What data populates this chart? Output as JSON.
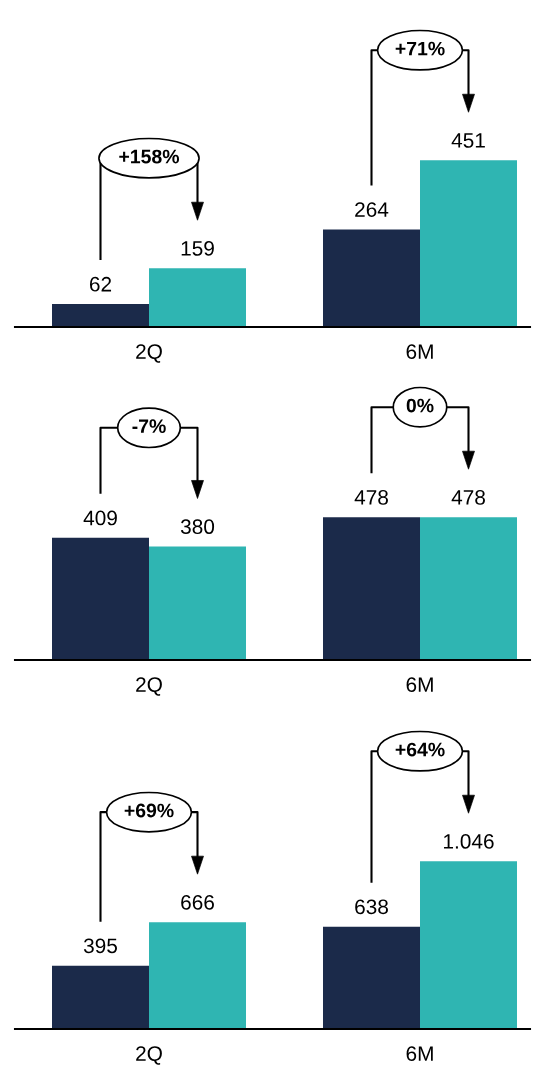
{
  "chart_data": [
    {
      "type": "bar",
      "categories": [
        "2Q",
        "6M"
      ],
      "data_labels": true,
      "legend": false,
      "grid": false,
      "series": [
        {
          "color": "#1b2a4a",
          "values": [
            62,
            264
          ]
        },
        {
          "color": "#2fb5b2",
          "values": [
            159,
            451
          ]
        }
      ],
      "annotations": [
        "+158%",
        "+71%"
      ]
    },
    {
      "type": "bar",
      "categories": [
        "2Q",
        "6M"
      ],
      "data_labels": true,
      "legend": false,
      "grid": false,
      "series": [
        {
          "color": "#1b2a4a",
          "values": [
            409,
            478
          ]
        },
        {
          "color": "#2fb5b2",
          "values": [
            380,
            478
          ]
        }
      ],
      "annotations": [
        "-7%",
        "0%"
      ]
    },
    {
      "type": "bar",
      "categories": [
        "2Q",
        "6M"
      ],
      "legend": false,
      "grid": false,
      "series": [
        {
          "color": "#1b2a4a",
          "values": [
            395,
            638
          ],
          "value_labels": [
            "395",
            "638"
          ]
        },
        {
          "color": "#2fb5b2",
          "values": [
            666,
            1046
          ],
          "value_labels": [
            "666",
            "1.046"
          ]
        }
      ],
      "annotations": [
        "+69%",
        "+64%"
      ]
    }
  ]
}
